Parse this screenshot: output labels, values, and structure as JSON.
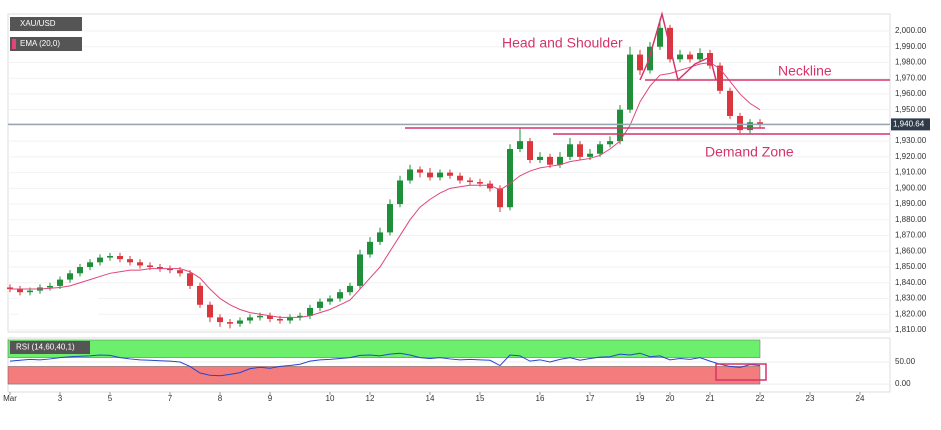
{
  "chart_data": [
    {
      "type": "candlestick",
      "name": "XAU/USD",
      "up_color": "#1f8f3a",
      "down_color": "#d9363e",
      "open": [
        1837,
        1836,
        1834,
        1835,
        1837,
        1838,
        1842,
        1846,
        1850,
        1853,
        1856,
        1857,
        1855,
        1853,
        1851,
        1850,
        1849,
        1848,
        1846,
        1838,
        1826,
        1818,
        1815,
        1814,
        1816,
        1818,
        1819,
        1817,
        1816,
        1818,
        1819,
        1824,
        1828,
        1830,
        1834,
        1838,
        1858,
        1866,
        1872,
        1890,
        1905,
        1912,
        1910,
        1907,
        1910,
        1908,
        1905,
        1904,
        1903,
        1900,
        1888,
        1925,
        1930,
        1918,
        1920,
        1915,
        1920,
        1928,
        1920,
        1922,
        1928,
        1930,
        1950,
        1985,
        1975,
        1990,
        2002,
        1982,
        1985,
        1982,
        1986,
        1978,
        1962,
        1946,
        1937,
        1942
      ],
      "high": [
        1839,
        1838,
        1837,
        1839,
        1840,
        1844,
        1848,
        1852,
        1855,
        1858,
        1859,
        1859,
        1857,
        1855,
        1853,
        1852,
        1851,
        1850,
        1848,
        1840,
        1828,
        1820,
        1817,
        1818,
        1820,
        1821,
        1821,
        1819,
        1820,
        1821,
        1826,
        1830,
        1832,
        1836,
        1840,
        1861,
        1869,
        1875,
        1893,
        1908,
        1915,
        1914,
        1913,
        1912,
        1912,
        1910,
        1907,
        1906,
        1905,
        1902,
        1928,
        1938,
        1932,
        1923,
        1922,
        1923,
        1932,
        1930,
        1925,
        1930,
        1933,
        1953,
        1990,
        1988,
        1993,
        2008,
        2004,
        1988,
        1987,
        1989,
        1988,
        1980,
        1964,
        1948,
        1944,
        1944
      ],
      "low": [
        1834,
        1832,
        1832,
        1833,
        1835,
        1836,
        1840,
        1844,
        1848,
        1851,
        1854,
        1853,
        1851,
        1849,
        1848,
        1847,
        1846,
        1844,
        1836,
        1824,
        1815,
        1812,
        1811,
        1812,
        1814,
        1816,
        1815,
        1814,
        1814,
        1816,
        1817,
        1822,
        1826,
        1828,
        1832,
        1836,
        1856,
        1864,
        1870,
        1888,
        1903,
        1907,
        1905,
        1905,
        1906,
        1903,
        1902,
        1901,
        1898,
        1885,
        1886,
        1923,
        1916,
        1916,
        1913,
        1913,
        1918,
        1918,
        1918,
        1920,
        1926,
        1928,
        1948,
        1972,
        1973,
        1988,
        1980,
        1980,
        1980,
        1980,
        1976,
        1960,
        1944,
        1935,
        1935,
        1938
      ],
      "close": [
        1836,
        1834,
        1835,
        1837,
        1838,
        1842,
        1846,
        1850,
        1853,
        1856,
        1857,
        1855,
        1853,
        1851,
        1850,
        1849,
        1848,
        1846,
        1838,
        1826,
        1818,
        1815,
        1814,
        1816,
        1818,
        1819,
        1817,
        1816,
        1818,
        1819,
        1824,
        1828,
        1830,
        1834,
        1838,
        1858,
        1866,
        1872,
        1890,
        1905,
        1912,
        1910,
        1907,
        1910,
        1908,
        1905,
        1904,
        1903,
        1900,
        1888,
        1925,
        1930,
        1918,
        1920,
        1915,
        1920,
        1928,
        1920,
        1922,
        1928,
        1930,
        1950,
        1985,
        1975,
        1990,
        2002,
        1982,
        1985,
        1982,
        1986,
        1978,
        1962,
        1946,
        1937,
        1942,
        1940.64
      ],
      "ema": {
        "name": "EMA (20,0)",
        "color": "#e0457b",
        "values": [
          1836,
          1836,
          1836,
          1836,
          1836.5,
          1837,
          1838,
          1840,
          1842,
          1844,
          1846,
          1847,
          1848,
          1848,
          1849,
          1849,
          1849,
          1849,
          1847,
          1843,
          1836,
          1830,
          1826,
          1823,
          1821,
          1820,
          1819,
          1818,
          1818,
          1818,
          1819,
          1821,
          1823,
          1826,
          1829,
          1836,
          1843,
          1850,
          1860,
          1870,
          1880,
          1888,
          1893,
          1897,
          1900,
          1901,
          1902,
          1902,
          1902,
          1899,
          1903,
          1908,
          1911,
          1913,
          1914,
          1915,
          1917,
          1918,
          1919,
          1921,
          1925,
          1930,
          1940,
          1955,
          1965,
          1972,
          1973,
          1975,
          1977,
          1979,
          1980,
          1976,
          1968,
          1960,
          1954,
          1950
        ]
      },
      "xlim": [
        -0.2,
        88
      ],
      "ylim": [
        1808.7,
        2010.8
      ],
      "yticks": [
        {
          "value": 1810,
          "label": "1,810.00"
        },
        {
          "value": 1820,
          "label": "1,820.00"
        },
        {
          "value": 1830,
          "label": "1,830.00"
        },
        {
          "value": 1840,
          "label": "1,840.00"
        },
        {
          "value": 1850,
          "label": "1,850.00"
        },
        {
          "value": 1860,
          "label": "1,860.00"
        },
        {
          "value": 1870,
          "label": "1,870.00"
        },
        {
          "value": 1880,
          "label": "1,880.00"
        },
        {
          "value": 1890,
          "label": "1,890.00"
        },
        {
          "value": 1900,
          "label": "1,900.00"
        },
        {
          "value": 1910,
          "label": "1,910.00"
        },
        {
          "value": 1920,
          "label": "1,920.00"
        },
        {
          "value": 1930,
          "label": "1,930.00"
        },
        {
          "value": 1940,
          "label": "1,940.00"
        },
        {
          "value": 1950,
          "label": "1,950.00"
        },
        {
          "value": 1960,
          "label": "1,960.00"
        },
        {
          "value": 1970,
          "label": "1,970.00"
        },
        {
          "value": 1980,
          "label": "1,980.00"
        },
        {
          "value": 1990,
          "label": "1,990.00"
        },
        {
          "value": 2000,
          "label": "2,000.00"
        }
      ],
      "last_price": {
        "value": 1940.64,
        "label": "1,940.64"
      },
      "annotations": [
        "Head and Shoulder",
        "Neckline",
        "Demand Zone"
      ]
    },
    {
      "type": "line",
      "name": "RSI (14,60,40,1)",
      "color": "#2447c9",
      "values": [
        52,
        54,
        56,
        55,
        57,
        60,
        62,
        63,
        64,
        66,
        65,
        60,
        57,
        55,
        54,
        53,
        52,
        50,
        40,
        25,
        20,
        19,
        22,
        26,
        35,
        38,
        36,
        40,
        42,
        45,
        52,
        55,
        56,
        58,
        60,
        65,
        66,
        64,
        68,
        70,
        66,
        60,
        58,
        60,
        57,
        55,
        56,
        55,
        54,
        42,
        66,
        64,
        52,
        55,
        50,
        56,
        60,
        54,
        58,
        61,
        62,
        68,
        66,
        70,
        62,
        64,
        55,
        58,
        56,
        60,
        52,
        45,
        40,
        38,
        44,
        42
      ],
      "zones": [
        {
          "from": 60,
          "to": 100,
          "color": "#6cf06c"
        },
        {
          "from": 0,
          "to": 40,
          "color": "#f47c7c"
        }
      ],
      "xlim": [
        -0.2,
        88
      ],
      "ylim": [
        -18,
        104.5
      ],
      "yticks": [
        {
          "value": 50,
          "label": "50.00"
        },
        {
          "value": 0,
          "label": "0.00"
        }
      ],
      "xticks": [
        {
          "value": 0,
          "label": "Mar"
        },
        5,
        10,
        16,
        21,
        26,
        32,
        36,
        42,
        47,
        53,
        58,
        63,
        66,
        70,
        75,
        80,
        85
      ],
      "xtick_labels": [
        "Mar",
        "3",
        "5",
        "7",
        "8",
        "9",
        "10",
        "12",
        "14",
        "15",
        "16",
        "17",
        "19",
        "20",
        "21",
        "22",
        "23",
        "24"
      ]
    }
  ]
}
